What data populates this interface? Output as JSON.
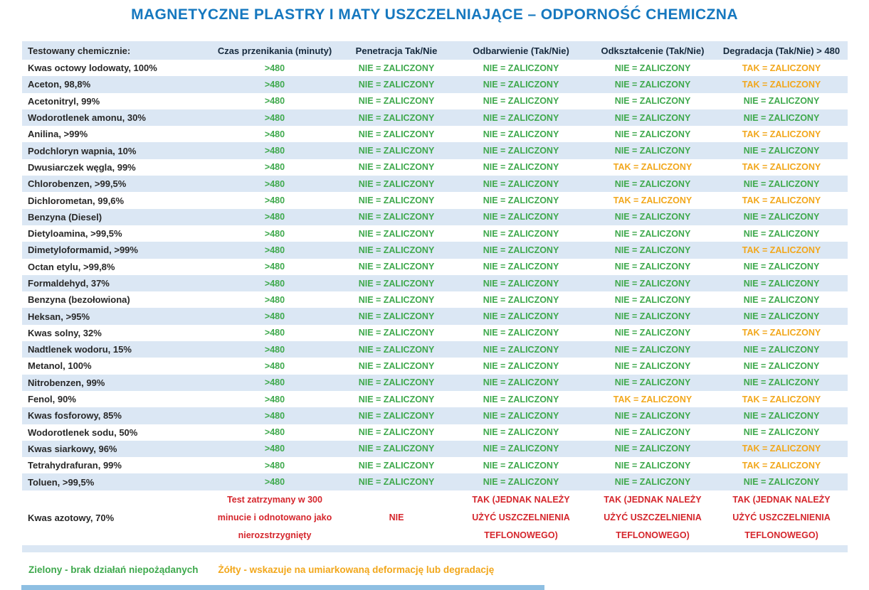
{
  "title": "MAGNETYCZNE PLASTRY I MATY USZCZELNIAJĄCE – ODPORNOŚĆ CHEMICZNA",
  "colors": {
    "accent_blue": "#1678bf",
    "row_stripe": "#dbe7f4",
    "pass_green": "#3fa94d",
    "warn_yellow": "#f2a71b",
    "fail_red": "#d5262c"
  },
  "table": {
    "headers": [
      "Testowany chemicznie:",
      "Czas przenikania (minuty)",
      "Penetracja Tak/Nie",
      "Odbarwienie (Tak/Nie)",
      "Odkształcenie (Tak/Nie)",
      "Degradacja (Tak/Nie) > 480"
    ],
    "rows": [
      {
        "chemical": "Kwas octowy lodowaty, 100%",
        "time": ">480",
        "results": [
          "NIE = ZALICZONY",
          "NIE = ZALICZONY",
          "NIE = ZALICZONY",
          "TAK = ZALICZONY"
        ]
      },
      {
        "chemical": "Aceton, 98,8%",
        "time": ">480",
        "results": [
          "NIE = ZALICZONY",
          "NIE = ZALICZONY",
          "NIE = ZALICZONY",
          "TAK = ZALICZONY"
        ]
      },
      {
        "chemical": "Acetonitryl, 99%",
        "time": ">480",
        "results": [
          "NIE = ZALICZONY",
          "NIE = ZALICZONY",
          "NIE = ZALICZONY",
          "NIE = ZALICZONY"
        ]
      },
      {
        "chemical": "Wodorotlenek amonu, 30%",
        "time": ">480",
        "results": [
          "NIE = ZALICZONY",
          "NIE = ZALICZONY",
          "NIE = ZALICZONY",
          "NIE = ZALICZONY"
        ]
      },
      {
        "chemical": "Anilina, >99%",
        "time": ">480",
        "results": [
          "NIE = ZALICZONY",
          "NIE = ZALICZONY",
          "NIE = ZALICZONY",
          "TAK = ZALICZONY"
        ]
      },
      {
        "chemical": "Podchloryn wapnia, 10%",
        "time": ">480",
        "results": [
          "NIE = ZALICZONY",
          "NIE = ZALICZONY",
          "NIE = ZALICZONY",
          "NIE = ZALICZONY"
        ]
      },
      {
        "chemical": "Dwusiarczek węgla, 99%",
        "time": ">480",
        "results": [
          "NIE = ZALICZONY",
          "NIE = ZALICZONY",
          "TAK = ZALICZONY",
          "TAK = ZALICZONY"
        ]
      },
      {
        "chemical": "Chlorobenzen, >99,5%",
        "time": ">480",
        "results": [
          "NIE = ZALICZONY",
          "NIE = ZALICZONY",
          "NIE = ZALICZONY",
          "NIE = ZALICZONY"
        ]
      },
      {
        "chemical": "Dichlorometan, 99,6%",
        "time": ">480",
        "results": [
          "NIE = ZALICZONY",
          "NIE = ZALICZONY",
          "TAK = ZALICZONY",
          "TAK = ZALICZONY"
        ]
      },
      {
        "chemical": "Benzyna (Diesel)",
        "time": ">480",
        "results": [
          "NIE = ZALICZONY",
          "NIE = ZALICZONY",
          "NIE = ZALICZONY",
          "NIE = ZALICZONY"
        ]
      },
      {
        "chemical": "Dietyloamina, >99,5%",
        "time": ">480",
        "results": [
          "NIE = ZALICZONY",
          "NIE = ZALICZONY",
          "NIE = ZALICZONY",
          "NIE = ZALICZONY"
        ]
      },
      {
        "chemical": "Dimetyloformamid, >99%",
        "time": ">480",
        "results": [
          "NIE = ZALICZONY",
          "NIE = ZALICZONY",
          "NIE = ZALICZONY",
          "TAK = ZALICZONY"
        ]
      },
      {
        "chemical": "Octan etylu, >99,8%",
        "time": ">480",
        "results": [
          "NIE = ZALICZONY",
          "NIE = ZALICZONY",
          "NIE = ZALICZONY",
          "NIE = ZALICZONY"
        ]
      },
      {
        "chemical": "Formaldehyd, 37%",
        "time": ">480",
        "results": [
          "NIE = ZALICZONY",
          "NIE = ZALICZONY",
          "NIE = ZALICZONY",
          "NIE = ZALICZONY"
        ]
      },
      {
        "chemical": "Benzyna (bezołowiona)",
        "time": ">480",
        "results": [
          "NIE = ZALICZONY",
          "NIE = ZALICZONY",
          "NIE = ZALICZONY",
          "NIE = ZALICZONY"
        ]
      },
      {
        "chemical": "Heksan, >95%",
        "time": ">480",
        "results": [
          "NIE = ZALICZONY",
          "NIE = ZALICZONY",
          "NIE = ZALICZONY",
          "NIE = ZALICZONY"
        ]
      },
      {
        "chemical": "Kwas solny, 32%",
        "time": ">480",
        "results": [
          "NIE = ZALICZONY",
          "NIE = ZALICZONY",
          "NIE = ZALICZONY",
          "TAK = ZALICZONY"
        ]
      },
      {
        "chemical": "Nadtlenek wodoru, 15%",
        "time": ">480",
        "results": [
          "NIE = ZALICZONY",
          "NIE = ZALICZONY",
          "NIE = ZALICZONY",
          "NIE = ZALICZONY"
        ]
      },
      {
        "chemical": "Metanol, 100%",
        "time": ">480",
        "results": [
          "NIE = ZALICZONY",
          "NIE = ZALICZONY",
          "NIE = ZALICZONY",
          "NIE = ZALICZONY"
        ]
      },
      {
        "chemical": "Nitrobenzen, 99%",
        "time": ">480",
        "results": [
          "NIE = ZALICZONY",
          "NIE = ZALICZONY",
          "NIE = ZALICZONY",
          "NIE = ZALICZONY"
        ]
      },
      {
        "chemical": "Fenol, 90%",
        "time": ">480",
        "results": [
          "NIE = ZALICZONY",
          "NIE = ZALICZONY",
          "TAK = ZALICZONY",
          "TAK = ZALICZONY"
        ]
      },
      {
        "chemical": "Kwas fosforowy, 85%",
        "time": ">480",
        "results": [
          "NIE = ZALICZONY",
          "NIE = ZALICZONY",
          "NIE = ZALICZONY",
          "NIE = ZALICZONY"
        ]
      },
      {
        "chemical": "Wodorotlenek sodu, 50%",
        "time": ">480",
        "results": [
          "NIE = ZALICZONY",
          "NIE = ZALICZONY",
          "NIE = ZALICZONY",
          "NIE = ZALICZONY"
        ]
      },
      {
        "chemical": "Kwas siarkowy, 96%",
        "time": ">480",
        "results": [
          "NIE = ZALICZONY",
          "NIE = ZALICZONY",
          "NIE = ZALICZONY",
          "TAK = ZALICZONY"
        ]
      },
      {
        "chemical": "Tetrahydrafuran, 99%",
        "time": ">480",
        "results": [
          "NIE = ZALICZONY",
          "NIE = ZALICZONY",
          "NIE = ZALICZONY",
          "TAK = ZALICZONY"
        ]
      },
      {
        "chemical": "Toluen, >99,5%",
        "time": ">480",
        "results": [
          "NIE = ZALICZONY",
          "NIE = ZALICZONY",
          "NIE = ZALICZONY",
          "NIE = ZALICZONY"
        ]
      }
    ],
    "nitric_row": {
      "chemical": "Kwas azotowy, 70%",
      "time_note": "Test zatrzymany w 300 minucie i odnotowano jako nierozstrzygnięty",
      "penetration": "NIE",
      "result_note": "TAK (JEDNAK NALEŻY UŻYĆ USZCZELNIENIA TEFLONOWEGO)"
    }
  },
  "legend": {
    "green": "Zielony - brak działań niepożądanych",
    "yellow": "Żółty - wskazuje na umiarkowaną deformację lub degradację"
  }
}
